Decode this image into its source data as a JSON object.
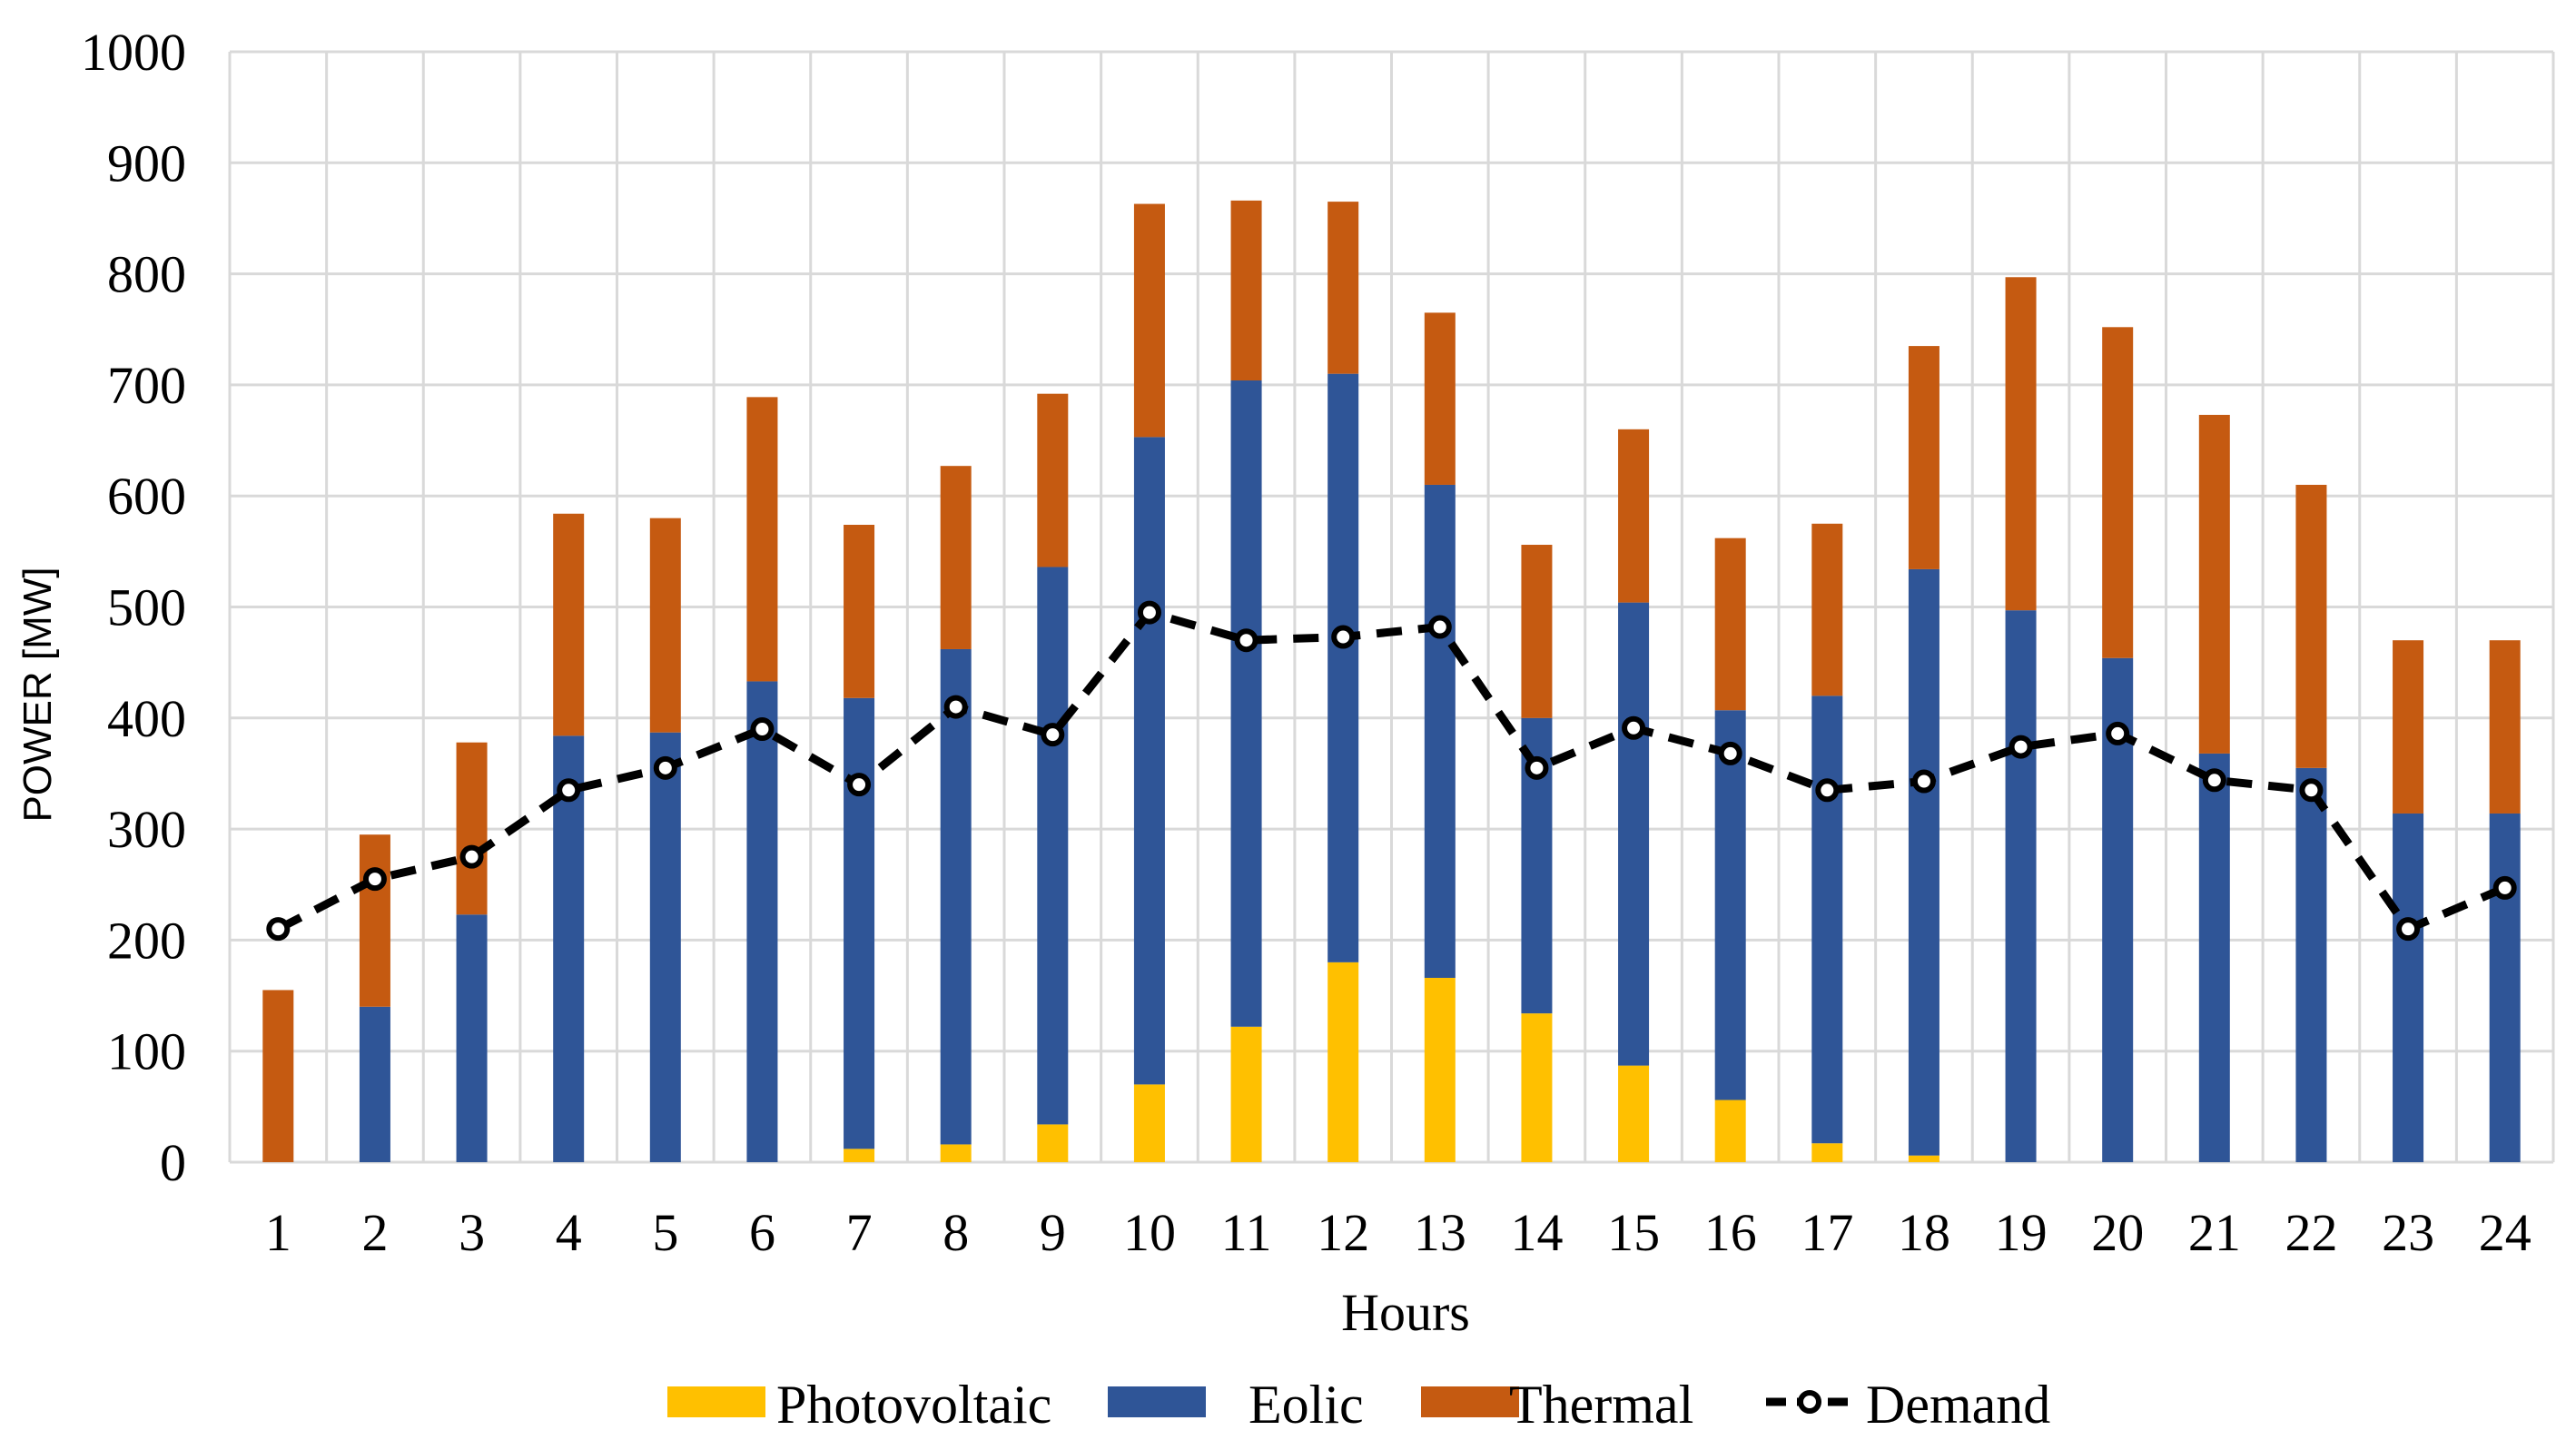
{
  "chart_data": {
    "type": "bar",
    "stacked": true,
    "title": "",
    "xlabel": "Hours",
    "ylabel": "POWER [MW]",
    "ylim": [
      0,
      1000
    ],
    "yticks": [
      0,
      100,
      200,
      300,
      400,
      500,
      600,
      700,
      800,
      900,
      1000
    ],
    "grid": true,
    "legend_position": "bottom",
    "categories": [
      "1",
      "2",
      "3",
      "4",
      "5",
      "6",
      "7",
      "8",
      "9",
      "10",
      "11",
      "12",
      "13",
      "14",
      "15",
      "16",
      "17",
      "18",
      "19",
      "20",
      "21",
      "22",
      "23",
      "24"
    ],
    "series": [
      {
        "name": "Photovoltaic",
        "kind": "bar",
        "color": "#FFC000",
        "values": [
          0,
          0,
          0,
          0,
          0,
          0,
          12,
          16,
          34,
          70,
          122,
          180,
          166,
          134,
          87,
          56,
          17,
          6,
          0,
          0,
          0,
          0,
          0,
          0
        ]
      },
      {
        "name": "Eolic",
        "kind": "bar",
        "color": "#2F5597",
        "values": [
          0,
          140,
          223,
          384,
          387,
          433,
          406,
          446,
          502,
          583,
          582,
          530,
          444,
          266,
          417,
          351,
          403,
          528,
          497,
          454,
          368,
          355,
          314,
          314
        ]
      },
      {
        "name": "Thermal",
        "kind": "bar",
        "color": "#C55A11",
        "values": [
          155,
          155,
          155,
          200,
          193,
          256,
          156,
          165,
          156,
          210,
          162,
          155,
          155,
          156,
          156,
          155,
          155,
          201,
          300,
          298,
          305,
          255,
          156,
          156
        ]
      },
      {
        "name": "Demand",
        "kind": "line",
        "color": "#000000",
        "values": [
          210,
          255,
          275,
          335,
          355,
          390,
          340,
          410,
          385,
          495,
          470,
          473,
          482,
          355,
          391,
          368,
          335,
          343,
          374,
          386,
          344,
          335,
          210,
          247
        ]
      }
    ]
  }
}
